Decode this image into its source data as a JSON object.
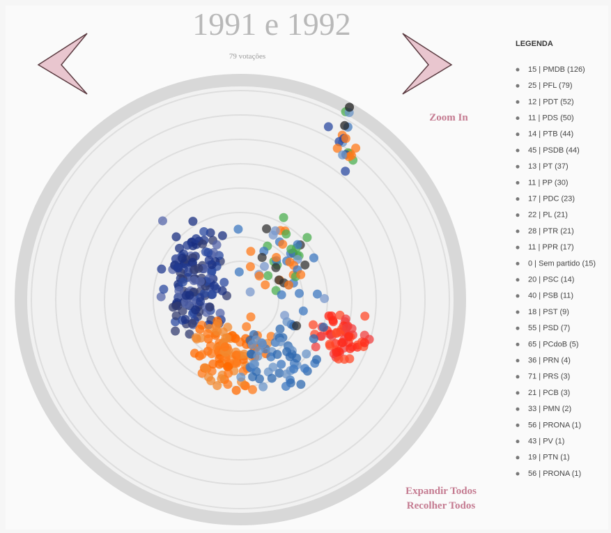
{
  "header": {
    "title": "1991 e 1992",
    "subtitle": "79 votações"
  },
  "controls": {
    "zoom": "Zoom In",
    "expand": "Expandir Todos",
    "collapse": "Recolher Todos"
  },
  "legend": {
    "title": "LEGENDA",
    "items": [
      "15 | PMDB (126)",
      "25 | PFL (79)",
      "12 | PDT (52)",
      "11 | PDS (50)",
      "14 | PTB (44)",
      "45 | PSDB (44)",
      "13 | PT (37)",
      "11 | PP (30)",
      "17 | PDC (23)",
      "22 | PL (21)",
      "28 | PTR (21)",
      "11 | PPR (17)",
      "0 | Sem partido (15)",
      "20 | PSC (14)",
      "40 | PSB (11)",
      "18 | PST (9)",
      "55 | PSD (7)",
      "65 | PCdoB (5)",
      "36 | PRN (4)",
      "71 | PRS (3)",
      "21 | PCB (3)",
      "33 | PMN (2)",
      "56 | PRONA (1)",
      "43 | PV (1)",
      "19 | PTN (1)",
      "56 | PRONA (1)"
    ]
  }
}
